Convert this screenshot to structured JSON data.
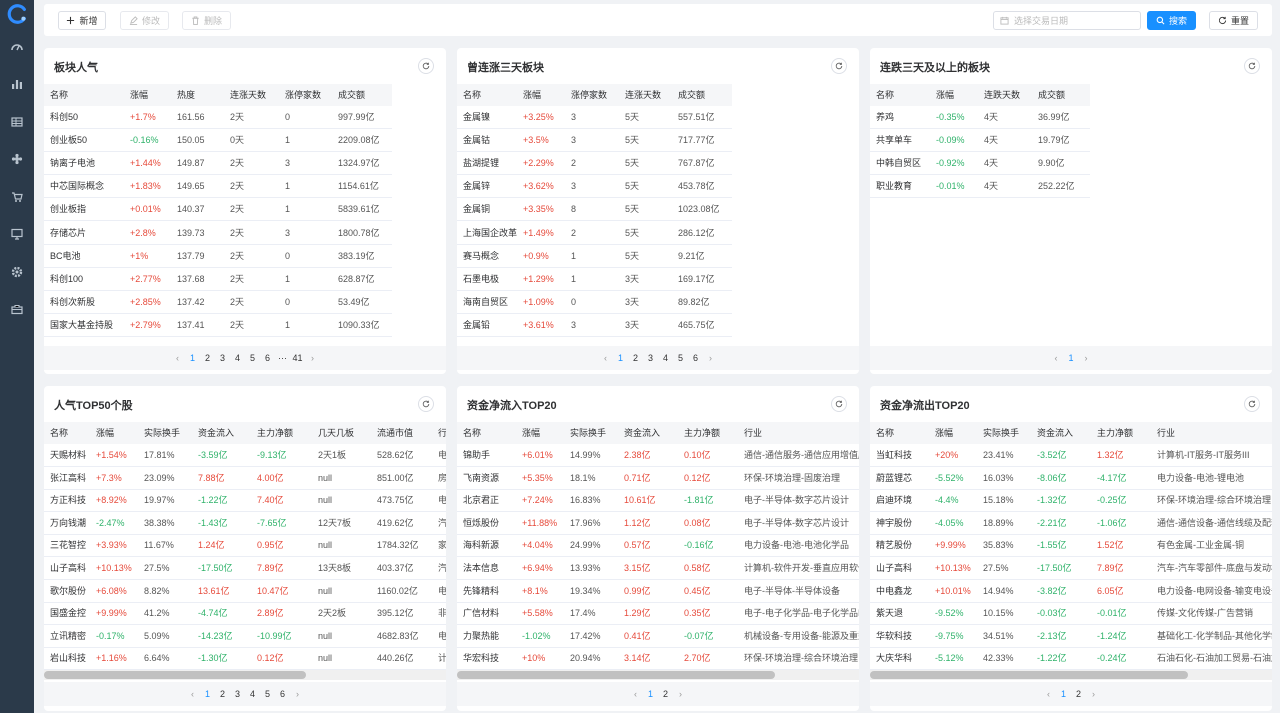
{
  "toolbar": {
    "add_label": "新增",
    "edit_label": "修改",
    "delete_label": "删除",
    "date_placeholder": "选择交易日期",
    "search_label": "搜索",
    "reset_label": "重置"
  },
  "sidebar": {
    "items": [
      "dashboard-icon",
      "chart-icon",
      "table-icon",
      "flower-icon",
      "cart-icon",
      "monitor-icon",
      "settings-icon",
      "toolbox-icon"
    ]
  },
  "panels": {
    "sector_popularity": {
      "title": "板块人气",
      "headers": [
        "名称",
        "涨幅",
        "热度",
        "连涨天数",
        "涨停家数",
        "成交额"
      ],
      "rows": [
        [
          "科创50",
          "+1.7%",
          "161.56",
          "2天",
          "0",
          "997.99亿"
        ],
        [
          "创业板50",
          "-0.16%",
          "150.05",
          "0天",
          "1",
          "2209.08亿"
        ],
        [
          "钠离子电池",
          "+1.44%",
          "149.87",
          "2天",
          "3",
          "1324.97亿"
        ],
        [
          "中芯国际概念",
          "+1.83%",
          "149.65",
          "2天",
          "1",
          "1154.61亿"
        ],
        [
          "创业板指",
          "+0.01%",
          "140.37",
          "2天",
          "1",
          "5839.61亿"
        ],
        [
          "存储芯片",
          "+2.8%",
          "139.73",
          "2天",
          "3",
          "1800.78亿"
        ],
        [
          "BC电池",
          "+1%",
          "137.79",
          "2天",
          "0",
          "383.19亿"
        ],
        [
          "科创100",
          "+2.77%",
          "137.68",
          "2天",
          "1",
          "628.87亿"
        ],
        [
          "科创次新股",
          "+2.85%",
          "137.42",
          "2天",
          "0",
          "53.49亿"
        ],
        [
          "国家大基金持股",
          "+2.79%",
          "137.41",
          "2天",
          "1",
          "1090.33亿"
        ]
      ],
      "pager": [
        "1",
        "2",
        "3",
        "4",
        "5",
        "6",
        "···",
        "41"
      ]
    },
    "three_day_rise": {
      "title": "曾连涨三天板块",
      "headers": [
        "名称",
        "涨幅",
        "涨停家数",
        "连涨天数",
        "成交额"
      ],
      "rows": [
        [
          "金属镍",
          "+3.25%",
          "3",
          "5天",
          "557.51亿"
        ],
        [
          "金属钴",
          "+3.5%",
          "3",
          "5天",
          "717.77亿"
        ],
        [
          "盐湖提锂",
          "+2.29%",
          "2",
          "5天",
          "767.87亿"
        ],
        [
          "金属锌",
          "+3.62%",
          "3",
          "5天",
          "453.78亿"
        ],
        [
          "金属铜",
          "+3.35%",
          "8",
          "5天",
          "1023.08亿"
        ],
        [
          "上海国企改革",
          "+1.49%",
          "2",
          "5天",
          "286.12亿"
        ],
        [
          "赛马概念",
          "+0.9%",
          "1",
          "5天",
          "9.21亿"
        ],
        [
          "石墨电极",
          "+1.29%",
          "1",
          "3天",
          "169.17亿"
        ],
        [
          "海南自贸区",
          "+1.09%",
          "0",
          "3天",
          "89.82亿"
        ],
        [
          "金属铅",
          "+3.61%",
          "3",
          "3天",
          "465.75亿"
        ]
      ],
      "pager": [
        "1",
        "2",
        "3",
        "4",
        "5",
        "6"
      ]
    },
    "three_day_fall": {
      "title": "连跌三天及以上的板块",
      "headers": [
        "名称",
        "涨幅",
        "连跌天数",
        "成交额"
      ],
      "rows": [
        [
          "养鸡",
          "-0.35%",
          "4天",
          "36.99亿"
        ],
        [
          "共享单车",
          "-0.09%",
          "4天",
          "19.79亿"
        ],
        [
          "中韩自贸区",
          "-0.92%",
          "4天",
          "9.90亿"
        ],
        [
          "职业教育",
          "-0.01%",
          "4天",
          "252.22亿"
        ]
      ],
      "pager": [
        "1"
      ]
    },
    "top50_stocks": {
      "title": "人气TOP50个股",
      "headers": [
        "名称",
        "涨幅",
        "实际换手",
        "资金流入",
        "主力净额",
        "几天几板",
        "流通市值",
        "行"
      ],
      "rows": [
        [
          "天赐材料",
          "+1.54%",
          "17.81%",
          "-3.59亿",
          "-9.13亿",
          "2天1板",
          "528.62亿",
          "电"
        ],
        [
          "张江高科",
          "+7.3%",
          "23.09%",
          "7.88亿",
          "4.00亿",
          "null",
          "851.00亿",
          "房"
        ],
        [
          "方正科技",
          "+8.92%",
          "19.97%",
          "-1.22亿",
          "7.40亿",
          "null",
          "473.75亿",
          "电"
        ],
        [
          "万向钱潮",
          "-2.47%",
          "38.38%",
          "-1.43亿",
          "-7.65亿",
          "12天7板",
          "419.62亿",
          "汽"
        ],
        [
          "三花智控",
          "+3.93%",
          "11.67%",
          "1.24亿",
          "0.95亿",
          "null",
          "1784.32亿",
          "家"
        ],
        [
          "山子高科",
          "+10.13%",
          "27.5%",
          "-17.50亿",
          "7.89亿",
          "13天8板",
          "403.37亿",
          "汽"
        ],
        [
          "歌尔股份",
          "+6.08%",
          "8.82%",
          "13.61亿",
          "10.47亿",
          "null",
          "1160.02亿",
          "电"
        ],
        [
          "国盛金控",
          "+9.99%",
          "41.2%",
          "-4.74亿",
          "2.89亿",
          "2天2板",
          "395.12亿",
          "非"
        ],
        [
          "立讯精密",
          "-0.17%",
          "5.09%",
          "-14.23亿",
          "-10.99亿",
          "null",
          "4682.83亿",
          "电"
        ],
        [
          "岩山科技",
          "+1.16%",
          "6.64%",
          "-1.30亿",
          "0.12亿",
          "null",
          "440.26亿",
          "计"
        ]
      ],
      "pager": [
        "1",
        "2",
        "3",
        "4",
        "5",
        "6"
      ]
    },
    "net_inflow": {
      "title": "资金净流入TOP20",
      "headers": [
        "名称",
        "涨幅",
        "实际换手",
        "资金流入",
        "主力净额",
        "行业"
      ],
      "rows": [
        [
          "锦助手",
          "+6.01%",
          "14.99%",
          "2.38亿",
          "0.10亿",
          "通信-通信服务-通信应用增值服"
        ],
        [
          "飞南资源",
          "+5.35%",
          "18.1%",
          "0.71亿",
          "0.12亿",
          "环保-环境治理-固废治理"
        ],
        [
          "北京君正",
          "+7.24%",
          "16.83%",
          "10.61亿",
          "-1.81亿",
          "电子-半导体-数字芯片设计"
        ],
        [
          "恒烁股份",
          "+11.88%",
          "17.96%",
          "1.12亿",
          "0.08亿",
          "电子-半导体-数字芯片设计"
        ],
        [
          "海科新源",
          "+4.04%",
          "24.99%",
          "0.57亿",
          "-0.16亿",
          "电力设备-电池-电池化学品"
        ],
        [
          "法本信息",
          "+6.94%",
          "13.93%",
          "3.15亿",
          "0.58亿",
          "计算机-软件开发-垂直应用软件"
        ],
        [
          "先锋精科",
          "+8.1%",
          "19.34%",
          "0.99亿",
          "0.45亿",
          "电子-半导体-半导体设备"
        ],
        [
          "广信材料",
          "+5.58%",
          "17.4%",
          "1.29亿",
          "0.35亿",
          "电子-电子化学品-电子化学品III"
        ],
        [
          "力聚热能",
          "-1.02%",
          "17.42%",
          "0.41亿",
          "-0.07亿",
          "机械设备-专用设备-能源及重型"
        ],
        [
          "华宏科技",
          "+10%",
          "20.94%",
          "3.14亿",
          "2.70亿",
          "环保-环境治理-综合环境治理"
        ]
      ],
      "pager": [
        "1",
        "2"
      ]
    },
    "net_outflow": {
      "title": "资金净流出TOP20",
      "headers": [
        "名称",
        "涨幅",
        "实际换手",
        "资金流入",
        "主力净额",
        "行业"
      ],
      "rows": [
        [
          "当虹科技",
          "+20%",
          "23.41%",
          "-3.52亿",
          "1.32亿",
          "计算机-IT服务-IT服务III"
        ],
        [
          "蔚蓝锂芯",
          "-5.52%",
          "16.03%",
          "-8.06亿",
          "-4.17亿",
          "电力设备-电池-锂电池"
        ],
        [
          "启迪环境",
          "-4.4%",
          "15.18%",
          "-1.32亿",
          "-0.25亿",
          "环保-环境治理-综合环境治理"
        ],
        [
          "神宇股份",
          "-4.05%",
          "18.89%",
          "-2.21亿",
          "-1.06亿",
          "通信-通信设备-通信线缆及配套"
        ],
        [
          "精艺股份",
          "+9.99%",
          "35.83%",
          "-1.55亿",
          "1.52亿",
          "有色金属-工业金属-铜"
        ],
        [
          "山子高科",
          "+10.13%",
          "27.5%",
          "-17.50亿",
          "7.89亿",
          "汽车-汽车零部件-底盘与发动机"
        ],
        [
          "中电鑫龙",
          "+10.01%",
          "14.94%",
          "-3.82亿",
          "6.05亿",
          "电力设备-电网设备-输变电设备"
        ],
        [
          "紫天退",
          "-9.52%",
          "10.15%",
          "-0.03亿",
          "-0.01亿",
          "传媒-文化传媒-广告营销"
        ],
        [
          "华软科技",
          "-9.75%",
          "34.51%",
          "-2.13亿",
          "-1.24亿",
          "基础化工-化学制品-其他化学制"
        ],
        [
          "大庆华科",
          "-5.12%",
          "42.33%",
          "-1.22亿",
          "-0.24亿",
          "石油石化-石油加工贸易-石油加"
        ]
      ],
      "pager": [
        "1",
        "2"
      ]
    }
  }
}
